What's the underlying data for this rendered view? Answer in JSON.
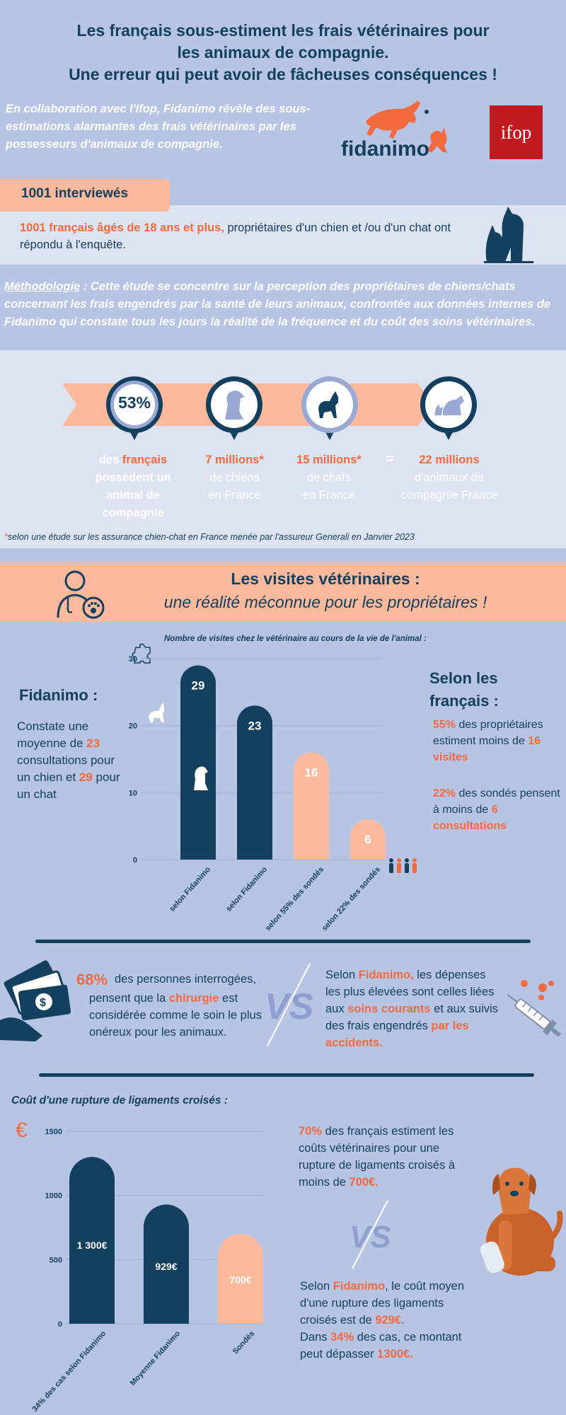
{
  "header": {
    "title_line1": "Les français sous-estiment les frais vétérinaires pour",
    "title_line2": "les animaux de compagnie.",
    "title_line3": "Une erreur qui peut avoir de fâcheuses conséquences !",
    "intro": "En collaboration avec l'Ifop, Fidanimo révèle des sous-estimations alarmantes des frais vétérinaires par les possesseurs d'animaux de compagnie."
  },
  "logos": {
    "fidanimo": "fidanimo",
    "ifop": "ifop"
  },
  "interviews": {
    "tab": "1001 interviewés",
    "highlight": "1001 français âgés de 18 ans et plus,",
    "text": " propriétaires d'un chien et /ou d'un chat ont répondu à l'enquête."
  },
  "methodology": {
    "label": "Méthodologie",
    "text": " : Cette étude se concentre sur la perception des propriétaires de chiens/chats concernant les frais engendrés par la santé de leurs animaux, confrontée aux données internes de Fidanimo qui constate tous les jours la réalité de la fréquence et du coût des soins vétérinaires."
  },
  "stats": {
    "pct": "53%",
    "s1_a": "des",
    "s1_b": "français",
    "s1_c": "possèdent un animal de compagnie",
    "s2_big": "7 millions*",
    "s2_line1": "de chiens",
    "s2_line2": "en France",
    "s3_big": "15 millions*",
    "s3_line1": "de chats",
    "s3_line2": "en France",
    "equals": "=",
    "s4_big": "22 millions",
    "s4_text": "d'animaux de compagnie France",
    "footnote_ast": "*",
    "footnote": "selon une étude sur les assurance chien-chat en France menée par l'assureur Generali en Janvier 2023"
  },
  "visits": {
    "title": "Les visites vétérinaires :",
    "subtitle": "une réalité méconnue pour les propriétaires !",
    "fid_title": "Fidanimo :",
    "fid_t1": "Constate une moyenne de ",
    "fid_v1": "23",
    "fid_t2": " consultations pour un chien et ",
    "fid_v2": "29",
    "fid_t3": " pour un chat",
    "sel_title": "Selon les français :",
    "sel1_pct": "55%",
    "sel1_t": " des propriétaires estiment moins de ",
    "sel1_v": "16 visites",
    "sel2_pct": "22%",
    "sel2_t": " des sondés pensent à moins de ",
    "sel2_v": "6 consultations"
  },
  "surgery": {
    "pct": "68%",
    "t1": "des personnes interrogées,",
    "t2": "pensent que la ",
    "t2_hl": "chirurgie",
    "t3": " est considérée comme le soin le plus onéreux pour les animaux.",
    "vs": "VS",
    "e1": "Selon ",
    "e1_hl": "Fidanimo,",
    "e2": " les dépenses les plus élevées sont celles liées aux ",
    "e2_hl": "soins courants",
    "e3": " et aux suivis des frais engendrés ",
    "e3_hl": "par les accidents."
  },
  "ligaments": {
    "title": "Coût d'une rupture de ligaments croisés :",
    "currency": "€",
    "l1_pct": "70%",
    "l1_t": " des français estiment les coûts vétérinaires pour une rupture de ligaments croisés à moins de ",
    "l1_v": "700€.",
    "vs": "VS",
    "l2_a": "Selon ",
    "l2_hl": "Fidanimo",
    "l2_b": ", le coût moyen d'une rupture des ligaments croisés est de ",
    "l2_v": "929€",
    "l2_c": ".",
    "l2_d": "Dans ",
    "l2_pct": "34%",
    "l2_e": " des cas, ce montant peut dépasser ",
    "l2_v2": "1300€."
  },
  "chart_data": [
    {
      "type": "bar",
      "title": "Nombre de visites chez le vétérinaire au cours de la vie de l'animal :",
      "categories": [
        "selon Fidanimo",
        "selon Fidanimo",
        "selon 55% des sondés",
        "selon 22% des sondés"
      ],
      "values": [
        29,
        23,
        16,
        6
      ],
      "labels": [
        "29",
        "23",
        "16",
        "6"
      ],
      "ylim": [
        0,
        30
      ],
      "yticks": [
        0,
        10,
        20,
        30
      ],
      "colors": [
        "#13405f",
        "#13405f",
        "#fcb99b",
        "#fcb99b"
      ],
      "grid": true
    },
    {
      "type": "bar",
      "title": "Coût d'une rupture de ligaments croisés :",
      "categories": [
        "34% des cas selon Fidanimo",
        "Moyenne Fidanimo",
        "Sondés"
      ],
      "values": [
        1300,
        929,
        700
      ],
      "labels": [
        "1 300€",
        "929€",
        "700€"
      ],
      "ylim": [
        0,
        1500
      ],
      "yticks": [
        0,
        500,
        1000,
        1500
      ],
      "colors": [
        "#13405f",
        "#13405f",
        "#fcb99b"
      ],
      "grid": true
    }
  ]
}
